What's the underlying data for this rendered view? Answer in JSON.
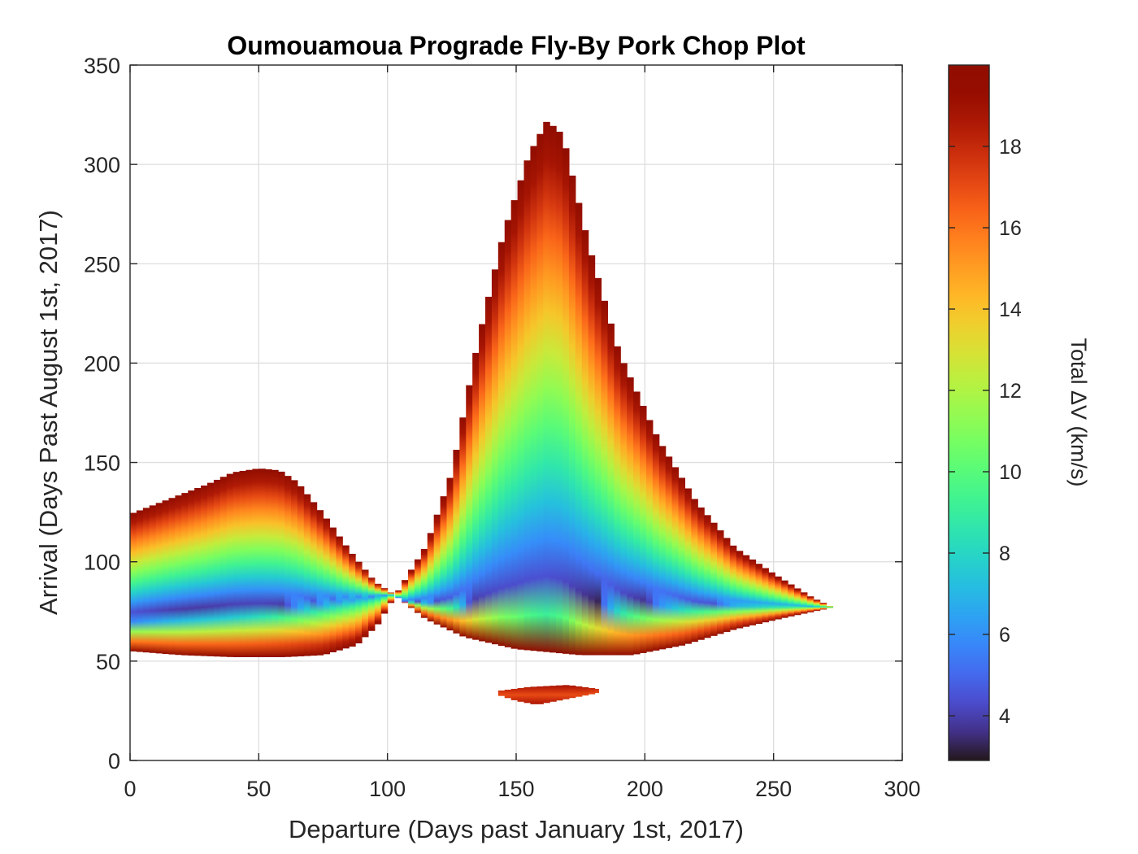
{
  "chart_data": {
    "type": "heatmap",
    "title": "Oumouamoua Prograde Fly-By Pork Chop Plot",
    "xlabel": "Departure (Days past January 1st, 2017)",
    "ylabel": "Arrival (Days Past August 1st, 2017)",
    "xlim": [
      0,
      300
    ],
    "ylim": [
      0,
      350
    ],
    "xticks": [
      0,
      50,
      100,
      150,
      200,
      250,
      300
    ],
    "yticks": [
      0,
      50,
      100,
      150,
      200,
      250,
      300,
      350
    ],
    "grid": true,
    "colorbar": {
      "label": "Total ΔV (km/s)",
      "range": [
        2.9,
        20
      ],
      "ticks": [
        4,
        6,
        8,
        10,
        12,
        14,
        16,
        18
      ],
      "placement": "right",
      "colormap": "turbo"
    },
    "regions": [
      {
        "name": "left lobe",
        "min_dv_point": {
          "departure": 15,
          "arrival": 73,
          "dv": 2.9
        },
        "upper_boundary": [
          [
            0,
            124
          ],
          [
            10,
            129
          ],
          [
            20,
            134
          ],
          [
            30,
            139
          ],
          [
            40,
            145
          ],
          [
            50,
            147
          ],
          [
            58,
            146
          ],
          [
            65,
            140
          ],
          [
            75,
            124
          ],
          [
            85,
            106
          ],
          [
            95,
            90
          ],
          [
            103,
            83
          ]
        ],
        "lower_boundary": [
          [
            0,
            55
          ],
          [
            20,
            53
          ],
          [
            40,
            52
          ],
          [
            60,
            52
          ],
          [
            75,
            53
          ],
          [
            88,
            58
          ],
          [
            96,
            68
          ],
          [
            103,
            83
          ]
        ]
      },
      {
        "name": "right lobe",
        "min_dv_point": {
          "departure": 170,
          "arrival": 80,
          "dv": 3.2
        },
        "upper_boundary": [
          [
            103,
            83
          ],
          [
            115,
            108
          ],
          [
            125,
            145
          ],
          [
            135,
            210
          ],
          [
            145,
            265
          ],
          [
            155,
            305
          ],
          [
            162,
            322
          ],
          [
            168,
            315
          ],
          [
            178,
            260
          ],
          [
            190,
            205
          ],
          [
            205,
            162
          ],
          [
            220,
            130
          ],
          [
            235,
            107
          ],
          [
            250,
            94
          ],
          [
            265,
            82
          ],
          [
            273,
            77
          ]
        ],
        "lower_boundary": [
          [
            103,
            83
          ],
          [
            115,
            71
          ],
          [
            130,
            62
          ],
          [
            150,
            56
          ],
          [
            175,
            53
          ],
          [
            195,
            53
          ],
          [
            215,
            58
          ],
          [
            235,
            66
          ],
          [
            255,
            72
          ],
          [
            273,
            77
          ]
        ]
      },
      {
        "name": "small island",
        "min_dv_point": {
          "departure": 160,
          "arrival": 33,
          "dv": 17.5
        },
        "upper_boundary": [
          [
            143,
            35
          ],
          [
            155,
            37
          ],
          [
            170,
            38
          ],
          [
            182,
            36
          ]
        ],
        "lower_boundary": [
          [
            143,
            33
          ],
          [
            150,
            30
          ],
          [
            158,
            28
          ],
          [
            170,
            31
          ],
          [
            182,
            34
          ]
        ]
      }
    ]
  }
}
